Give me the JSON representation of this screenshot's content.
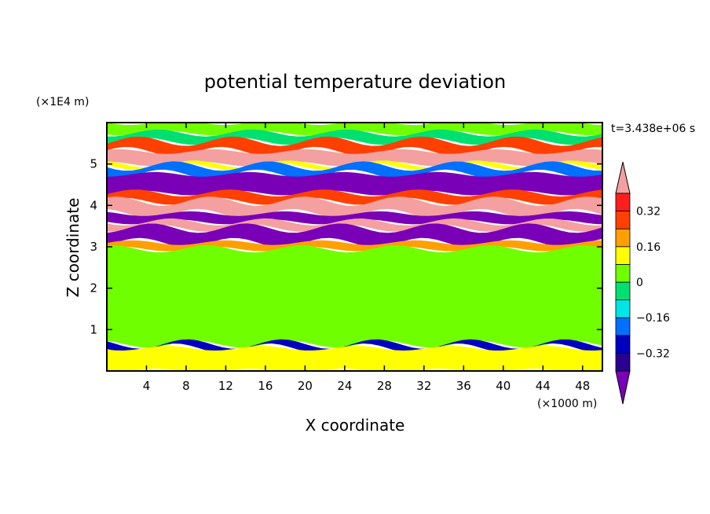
{
  "chart_data": {
    "type": "heatmap",
    "title": "potential temperature deviation",
    "xlabel": "X coordinate",
    "ylabel": "Z coordinate",
    "x_unit": "(×1000 m)",
    "y_unit": "(×1E4 m)",
    "time_label": "t=3.438e+06 s",
    "xlim": [
      0,
      50
    ],
    "ylim": [
      0,
      6
    ],
    "x_ticks": [
      4,
      8,
      12,
      16,
      20,
      24,
      28,
      32,
      36,
      40,
      44,
      48
    ],
    "y_ticks": [
      1,
      2,
      3,
      4,
      5
    ],
    "colorbar": {
      "levels": [
        -0.4,
        -0.32,
        -0.24,
        -0.16,
        -0.08,
        0,
        0.08,
        0.16,
        0.24,
        0.32,
        0.4
      ],
      "tick_labels": [
        "0.32",
        "0.16",
        "0",
        "−0.16",
        "−0.32"
      ],
      "tick_values": [
        0.32,
        0.16,
        0,
        -0.16,
        -0.32
      ],
      "colors": [
        "#7a00b8",
        "#2a0090",
        "#0000c0",
        "#0070ff",
        "#00e6e6",
        "#00e070",
        "#70ff00",
        "#ffff00",
        "#ffa000",
        "#ff4000",
        "#ff1e1e",
        "#f4a0a0"
      ]
    },
    "bands": [
      {
        "z": [
          5.75,
          6.0
        ],
        "value": 0.02
      },
      {
        "z": [
          5.55,
          5.75
        ],
        "value": -0.05
      },
      {
        "z": [
          5.3,
          5.55
        ],
        "value": 0.3
      },
      {
        "z": [
          5.0,
          5.3
        ],
        "value": 0.45
      },
      {
        "z": [
          4.95,
          5.0
        ],
        "value": 0.1
      },
      {
        "z": [
          4.75,
          4.95
        ],
        "value": -0.2
      },
      {
        "z": [
          4.3,
          4.75
        ],
        "value": -0.45
      },
      {
        "z": [
          4.1,
          4.3
        ],
        "value": 0.3
      },
      {
        "z": [
          3.8,
          4.1
        ],
        "value": 0.45
      },
      {
        "z": [
          3.6,
          3.8
        ],
        "value": -0.45
      },
      {
        "z": [
          3.45,
          3.6
        ],
        "value": 0.45
      },
      {
        "z": [
          3.1,
          3.45
        ],
        "value": -0.45
      },
      {
        "z": [
          2.95,
          3.1
        ],
        "value": 0.2
      },
      {
        "z": [
          0.65,
          2.95
        ],
        "value": 0.02
      },
      {
        "z": [
          0.55,
          0.65
        ],
        "value": -0.25
      },
      {
        "z": [
          0.0,
          0.55
        ],
        "value": 0.12
      }
    ]
  }
}
